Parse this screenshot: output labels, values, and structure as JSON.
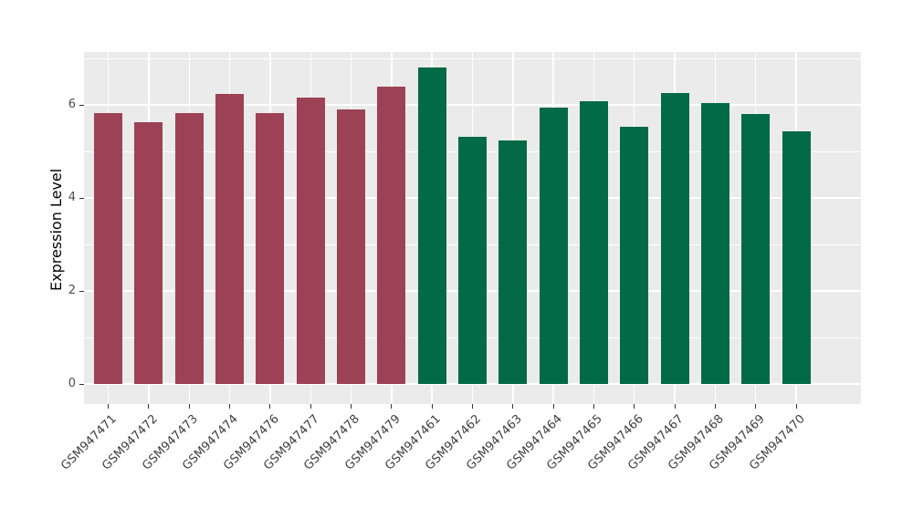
{
  "figure": {
    "background": "#FFFFFF",
    "panel_background": "#EBEBEB",
    "grid_color": "#FFFFFF",
    "tick_color": "#333333",
    "tick_label_color": "#4D4D4D",
    "axis_title_color": "#000000"
  },
  "chart_data": {
    "type": "bar",
    "title": "",
    "xlabel": "",
    "ylabel": "Expression Level",
    "categories": [
      "GSM947471",
      "GSM947472",
      "GSM947473",
      "GSM947474",
      "GSM947476",
      "GSM947477",
      "GSM947478",
      "GSM947479",
      "GSM947461",
      "GSM947462",
      "GSM947463",
      "GSM947464",
      "GSM947465",
      "GSM947466",
      "GSM947467",
      "GSM947468",
      "GSM947469",
      "GSM947470"
    ],
    "values": [
      5.83,
      5.63,
      5.83,
      6.23,
      5.83,
      6.16,
      5.9,
      6.4,
      6.81,
      5.31,
      5.24,
      5.94,
      6.08,
      5.53,
      6.26,
      6.05,
      5.81,
      5.43
    ],
    "bar_colors": [
      "#9C4254",
      "#9C4254",
      "#9C4254",
      "#9C4254",
      "#9C4254",
      "#9C4254",
      "#9C4254",
      "#9C4254",
      "#026A46",
      "#026A46",
      "#026A46",
      "#026A46",
      "#026A46",
      "#026A46",
      "#026A46",
      "#026A46",
      "#026A46",
      "#026A46"
    ],
    "groups": {
      "maroon_group": {
        "color": "#9C4254",
        "members": [
          "GSM947471",
          "GSM947472",
          "GSM947473",
          "GSM947474",
          "GSM947476",
          "GSM947477",
          "GSM947478",
          "GSM947479"
        ]
      },
      "green_group": {
        "color": "#026A46",
        "members": [
          "GSM947461",
          "GSM947462",
          "GSM947463",
          "GSM947464",
          "GSM947465",
          "GSM947466",
          "GSM947467",
          "GSM947468",
          "GSM947469",
          "GSM947470"
        ]
      }
    },
    "yticks": [
      0,
      2,
      4,
      6
    ],
    "yticks_minor": [
      1,
      3,
      5,
      7
    ],
    "ylim": [
      -0.43,
      7.14
    ],
    "grid": true,
    "legend": false
  }
}
